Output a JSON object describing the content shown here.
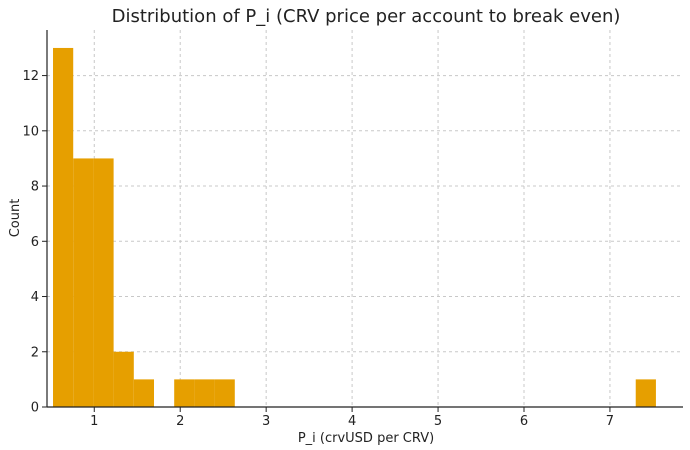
{
  "chart_data": {
    "type": "bar",
    "title": "Distribution of P_i (CRV price per account to break even)",
    "xlabel": "P_i (crvUSD per CRV)",
    "ylabel": "Count",
    "xlim": [
      0.45,
      7.85
    ],
    "ylim": [
      0,
      13.65
    ],
    "xticks": [
      1,
      2,
      3,
      4,
      5,
      6,
      7
    ],
    "yticks": [
      0,
      2,
      4,
      6,
      8,
      10,
      12
    ],
    "grid": true,
    "color": "#E69F00",
    "bins": [
      {
        "x0": 0.52,
        "x1": 0.755,
        "count": 13
      },
      {
        "x0": 0.755,
        "x1": 0.99,
        "count": 9
      },
      {
        "x0": 0.99,
        "x1": 1.225,
        "count": 9
      },
      {
        "x0": 1.225,
        "x1": 1.46,
        "count": 2
      },
      {
        "x0": 1.46,
        "x1": 1.695,
        "count": 1
      },
      {
        "x0": 1.695,
        "x1": 1.93,
        "count": 0
      },
      {
        "x0": 1.93,
        "x1": 2.165,
        "count": 1
      },
      {
        "x0": 2.165,
        "x1": 2.4,
        "count": 1
      },
      {
        "x0": 2.4,
        "x1": 2.635,
        "count": 1
      },
      {
        "x0": 7.3,
        "x1": 7.535,
        "count": 1
      }
    ]
  }
}
